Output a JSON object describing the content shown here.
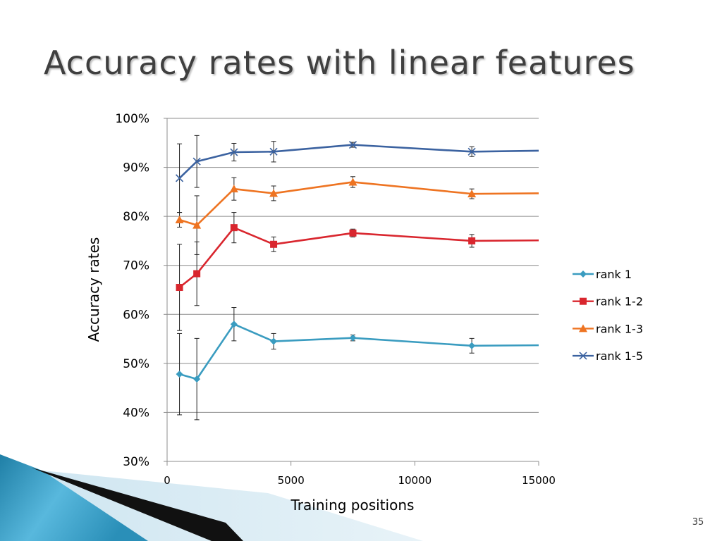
{
  "slide": {
    "title": "Accuracy rates with linear features",
    "page_number": "35"
  },
  "chart_data": {
    "type": "line",
    "xlabel": "Training positions",
    "ylabel": "Accuracy rates",
    "xlim": [
      0,
      15000
    ],
    "ylim": [
      30,
      100
    ],
    "x_ticks": [
      0,
      5000,
      10000,
      15000
    ],
    "y_ticks": [
      30,
      40,
      50,
      60,
      70,
      80,
      90,
      100
    ],
    "y_tick_format": "percent",
    "grid": "horizontal",
    "legend_position": "right",
    "x": [
      500,
      1200,
      2700,
      4300,
      7500,
      12300,
      15000
    ],
    "series": [
      {
        "name": "rank 1",
        "color": "#3a9cc0",
        "marker": "diamond",
        "values": [
          47.8,
          46.8,
          58.0,
          54.5,
          55.2,
          53.6,
          53.7
        ],
        "error": [
          8.3,
          8.3,
          3.4,
          1.6,
          0.6,
          1.5,
          null
        ]
      },
      {
        "name": "rank 1-2",
        "color": "#d9262e",
        "marker": "square",
        "values": [
          65.5,
          68.3,
          77.7,
          74.3,
          76.6,
          75.0,
          75.1
        ],
        "error": [
          8.8,
          6.5,
          3.1,
          1.5,
          0.8,
          1.3,
          null
        ]
      },
      {
        "name": "rank 1-3",
        "color": "#ee7422",
        "marker": "triangle",
        "values": [
          79.3,
          78.2,
          85.6,
          84.7,
          87.0,
          84.6,
          84.7
        ],
        "error": [
          1.5,
          6.0,
          2.3,
          1.5,
          1.1,
          1.0,
          null
        ]
      },
      {
        "name": "rank 1-5",
        "color": "#3b62a0",
        "marker": "x",
        "values": [
          87.8,
          91.2,
          93.1,
          93.2,
          94.6,
          93.2,
          93.4
        ],
        "error": [
          7.0,
          5.3,
          1.8,
          2.1,
          0.5,
          1.0,
          null
        ]
      }
    ]
  }
}
